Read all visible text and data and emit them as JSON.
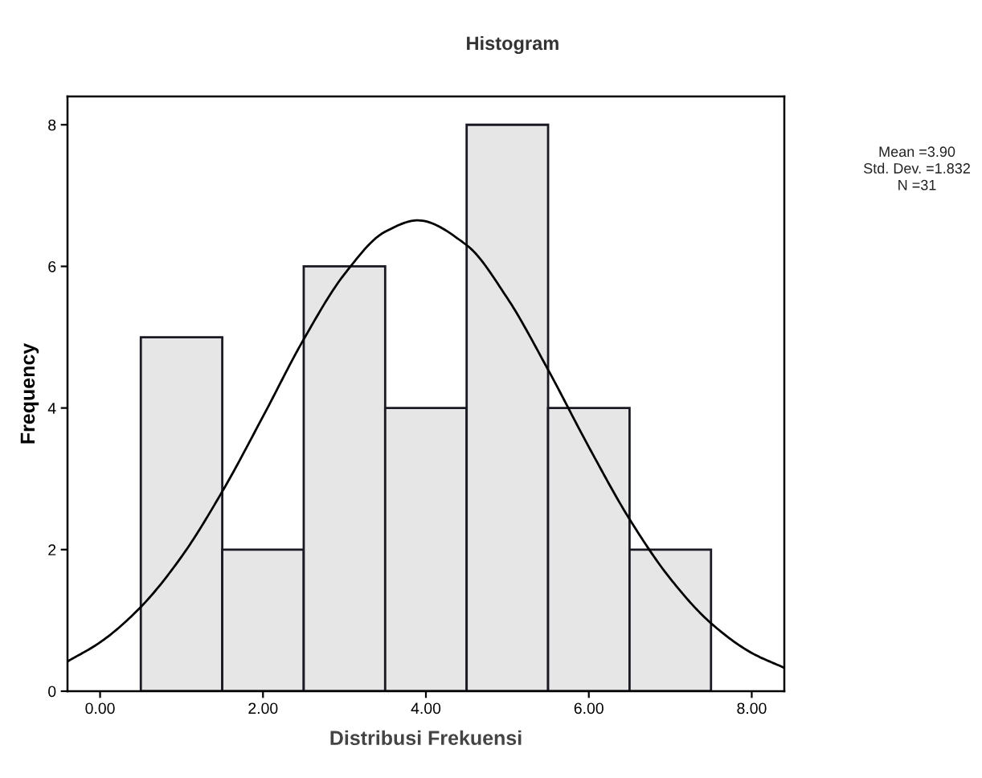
{
  "chart_data": {
    "type": "histogram",
    "title": "Histogram",
    "xlabel": "Distribusi Frekuensi",
    "ylabel": "Frequency",
    "bins": [
      0.5,
      1.5,
      2.5,
      3.5,
      4.5,
      5.5,
      6.5,
      7.5
    ],
    "values": [
      5,
      2,
      6,
      4,
      8,
      4,
      2
    ],
    "color": "#e6e6e6",
    "series": [
      {
        "type": "line",
        "color": "#000000",
        "x": [
          -0.4,
          0,
          0.5,
          1,
          1.5,
          2,
          2.5,
          3,
          3.5,
          3.9,
          4.5,
          5,
          5.5,
          6,
          6.5,
          7,
          7.5,
          8,
          8.4
        ],
        "values": [
          0.42,
          0.69,
          1.19,
          1.9,
          2.82,
          3.88,
          4.97,
          5.89,
          6.49,
          6.65,
          6.3,
          5.55,
          4.54,
          3.45,
          2.43,
          1.59,
          0.96,
          0.54,
          0.33
        ]
      }
    ],
    "xlim": [
      -0.4,
      8.4
    ],
    "ylim": [
      0,
      8.4
    ],
    "xticks": [
      {
        "value": 0,
        "label": "0.00"
      },
      {
        "value": 2,
        "label": "2.00"
      },
      {
        "value": 4,
        "label": "4.00"
      },
      {
        "value": 6,
        "label": "6.00"
      },
      {
        "value": 8,
        "label": "8.00"
      }
    ],
    "yticks": [
      0,
      2,
      4,
      6,
      8
    ],
    "annotations": [
      "Mean =3.90",
      "Std. Dev. =1.832",
      "N =31"
    ]
  }
}
